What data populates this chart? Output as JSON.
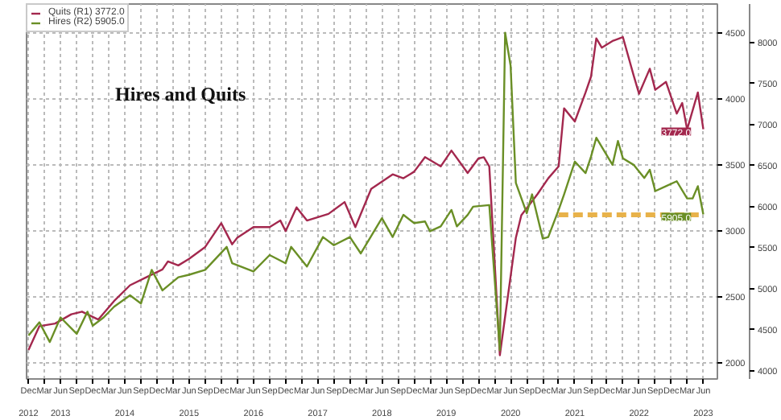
{
  "chart_data": {
    "type": "line",
    "title": "Hires and Quits",
    "xlim": [
      "2012-11-20",
      "2023-08-20"
    ],
    "ylim": [
      1880,
      4720
    ],
    "y2lim": [
      3900,
      8470
    ],
    "yticks": [
      2000,
      2500,
      3000,
      3500,
      4000,
      4500
    ],
    "y2ticks": [
      4000,
      4500,
      5000,
      5500,
      6000,
      6500,
      7000,
      7500,
      8000
    ],
    "xticks": [
      {
        "value": "2012-12",
        "label": "Dec"
      },
      {
        "value": "2013-03",
        "label": "Mar"
      },
      {
        "value": "2013-06",
        "label": "Jun"
      },
      {
        "value": "2013-09",
        "label": "Sep"
      },
      {
        "value": "2013-12",
        "label": "Dec"
      },
      {
        "value": "2014-03",
        "label": "Mar"
      },
      {
        "value": "2014-06",
        "label": "Jun"
      },
      {
        "value": "2014-09",
        "label": "Sep"
      },
      {
        "value": "2014-12",
        "label": "Dec"
      },
      {
        "value": "2015-03",
        "label": "Mar"
      },
      {
        "value": "2015-06",
        "label": "Jun"
      },
      {
        "value": "2015-09",
        "label": "Sep"
      },
      {
        "value": "2015-12",
        "label": "Dec"
      },
      {
        "value": "2016-03",
        "label": "Mar"
      },
      {
        "value": "2016-06",
        "label": "Jun"
      },
      {
        "value": "2016-09",
        "label": "Sep"
      },
      {
        "value": "2016-12",
        "label": "Dec"
      },
      {
        "value": "2017-03",
        "label": "Mar"
      },
      {
        "value": "2017-06",
        "label": "Jun"
      },
      {
        "value": "2017-09",
        "label": "Sep"
      },
      {
        "value": "2017-12",
        "label": "Dec"
      },
      {
        "value": "2018-03",
        "label": "Mar"
      },
      {
        "value": "2018-06",
        "label": "Jun"
      },
      {
        "value": "2018-09",
        "label": "Sep"
      },
      {
        "value": "2018-12",
        "label": "Dec"
      },
      {
        "value": "2019-03",
        "label": "Mar"
      },
      {
        "value": "2019-06",
        "label": "Jun"
      },
      {
        "value": "2019-09",
        "label": "Sep"
      },
      {
        "value": "2019-12",
        "label": "Dec"
      },
      {
        "value": "2020-03",
        "label": "Mar"
      },
      {
        "value": "2020-06",
        "label": "Jun"
      },
      {
        "value": "2020-09",
        "label": "Sep"
      },
      {
        "value": "2020-12",
        "label": "Dec"
      },
      {
        "value": "2021-03",
        "label": "Mar"
      },
      {
        "value": "2021-06",
        "label": "Jun"
      },
      {
        "value": "2021-09",
        "label": "Sep"
      },
      {
        "value": "2021-12",
        "label": "Dec"
      },
      {
        "value": "2022-03",
        "label": "Mar"
      },
      {
        "value": "2022-06",
        "label": "Jun"
      },
      {
        "value": "2022-09",
        "label": "Sep"
      },
      {
        "value": "2022-12",
        "label": "Dec"
      },
      {
        "value": "2023-03",
        "label": "Mar"
      },
      {
        "value": "2023-06",
        "label": "Jun"
      }
    ],
    "x2lim": [
      "2012-11-20",
      "2023-08-20"
    ],
    "x2ticks": [
      {
        "value": "2012-12",
        "label": "2012"
      },
      {
        "value": "2013-06",
        "label": "2013"
      },
      {
        "value": "2014-06",
        "label": "2014"
      },
      {
        "value": "2015-06",
        "label": "2015"
      },
      {
        "value": "2016-06",
        "label": "2016"
      },
      {
        "value": "2017-06",
        "label": "2017"
      },
      {
        "value": "2018-06",
        "label": "2018"
      },
      {
        "value": "2019-06",
        "label": "2019"
      },
      {
        "value": "2020-06",
        "label": "2020"
      },
      {
        "value": "2021-06",
        "label": "2021"
      },
      {
        "value": "2022-06",
        "label": "2022"
      },
      {
        "value": "2023-06",
        "label": "2023"
      }
    ],
    "grid": true,
    "legend": "top left",
    "series": [
      {
        "name": "Quits (R1) 3772.0",
        "color": "#a3284e",
        "x": [
          "2012-12",
          "2013-02",
          "2013-05",
          "2013-08",
          "2013-10",
          "2014-01",
          "2014-04",
          "2014-07",
          "2014-10",
          "2015-01",
          "2015-02",
          "2015-04",
          "2015-06",
          "2015-09",
          "2015-12",
          "2016-02",
          "2016-03",
          "2016-06",
          "2016-09",
          "2016-11",
          "2016-12",
          "2017-02",
          "2017-04",
          "2017-08",
          "2017-11",
          "2018-01",
          "2018-04",
          "2018-08",
          "2018-10",
          "2018-12",
          "2019-02",
          "2019-05",
          "2019-07",
          "2019-10",
          "2019-12",
          "2020-01",
          "2020-02",
          "2020-04",
          "2020-07",
          "2020-08",
          "2020-11",
          "2021-01",
          "2021-03",
          "2021-04",
          "2021-06",
          "2021-08",
          "2021-09",
          "2021-10",
          "2021-11",
          "2022-01",
          "2022-03",
          "2022-05",
          "2022-06",
          "2022-08",
          "2022-09",
          "2022-11",
          "2023-01",
          "2023-02",
          "2023-03",
          "2023-05",
          "2023-06"
        ],
        "values": [
          2100,
          2280,
          2300,
          2370,
          2390,
          2330,
          2470,
          2590,
          2650,
          2710,
          2770,
          2740,
          2790,
          2880,
          3060,
          2900,
          2950,
          3030,
          3030,
          3080,
          3000,
          3180,
          3080,
          3130,
          3220,
          3030,
          3320,
          3430,
          3400,
          3450,
          3560,
          3490,
          3610,
          3440,
          3550,
          3560,
          3490,
          2060,
          2950,
          3120,
          3280,
          3400,
          3490,
          3930,
          3830,
          4050,
          4170,
          4460,
          4390,
          4440,
          4470,
          4180,
          4040,
          4230,
          4070,
          4130,
          3890,
          3970,
          3770,
          4050,
          3772
        ],
        "value_labels": [
          null,
          null,
          null,
          null,
          null,
          null,
          null,
          null,
          null,
          null,
          null,
          null,
          null,
          null,
          null,
          null,
          null,
          null,
          null,
          null,
          null,
          null,
          null,
          null,
          null,
          null,
          null,
          null,
          null,
          null,
          null,
          null,
          null,
          null,
          null,
          null,
          null,
          null,
          null,
          null,
          null,
          null,
          null,
          null,
          null,
          null,
          null,
          null,
          null,
          null,
          null,
          null,
          null,
          null,
          null,
          null,
          null,
          null,
          null,
          null,
          "3772.0"
        ]
      },
      {
        "name": "Hires (R2) 5905.0",
        "color": "#6a8f26",
        "axis": "y2",
        "x": [
          "2012-12",
          "2013-02",
          "2013-04",
          "2013-06",
          "2013-09",
          "2013-11",
          "2013-12",
          "2014-02",
          "2014-04",
          "2014-07",
          "2014-09",
          "2014-11",
          "2015-01",
          "2015-04",
          "2015-06",
          "2015-09",
          "2016-01",
          "2016-02",
          "2016-06",
          "2016-09",
          "2016-12",
          "2017-01",
          "2017-04",
          "2017-07",
          "2017-09",
          "2017-12",
          "2018-02",
          "2018-06",
          "2018-08",
          "2018-10",
          "2018-12",
          "2019-02",
          "2019-03",
          "2019-05",
          "2019-07",
          "2019-08",
          "2019-10",
          "2019-11",
          "2020-02",
          "2020-04",
          "2020-05",
          "2020-06",
          "2020-07",
          "2020-09",
          "2020-10",
          "2020-12",
          "2021-01",
          "2021-03",
          "2021-04",
          "2021-06",
          "2021-08",
          "2021-09",
          "2021-10",
          "2022-01",
          "2022-02",
          "2022-03",
          "2022-05",
          "2022-07",
          "2022-08",
          "2022-09",
          "2022-11",
          "2023-01",
          "2023-03",
          "2023-04",
          "2023-05",
          "2023-06"
        ],
        "values": [
          4430,
          4590,
          4350,
          4650,
          4450,
          4720,
          4550,
          4650,
          4780,
          4920,
          4820,
          5230,
          4980,
          5140,
          5170,
          5230,
          5510,
          5310,
          5210,
          5410,
          5310,
          5510,
          5270,
          5630,
          5530,
          5630,
          5430,
          5860,
          5630,
          5900,
          5800,
          5820,
          5700,
          5760,
          5960,
          5760,
          5900,
          6000,
          6020,
          4250,
          8120,
          7720,
          6290,
          5920,
          6150,
          5610,
          5630,
          5960,
          6150,
          6550,
          6410,
          6610,
          6840,
          6510,
          6800,
          6590,
          6510,
          6350,
          6450,
          6190,
          6250,
          6310,
          6100,
          6100,
          6250,
          5905
        ],
        "value_labels": [
          null,
          null,
          null,
          null,
          null,
          null,
          null,
          null,
          null,
          null,
          null,
          null,
          null,
          null,
          null,
          null,
          null,
          null,
          null,
          null,
          null,
          null,
          null,
          null,
          null,
          null,
          null,
          null,
          null,
          null,
          null,
          null,
          null,
          null,
          null,
          null,
          null,
          null,
          null,
          null,
          null,
          null,
          null,
          null,
          null,
          null,
          null,
          null,
          null,
          null,
          null,
          null,
          null,
          null,
          null,
          null,
          null,
          null,
          null,
          null,
          null,
          null,
          null,
          null,
          null,
          "5905.0"
        ]
      },
      {
        "type": "line",
        "color": "#e8b24a",
        "axis": "y2",
        "line_style": "dashed",
        "x": [
          "2021-03",
          "2023-06"
        ],
        "values": [
          5900,
          5900
        ]
      }
    ]
  }
}
